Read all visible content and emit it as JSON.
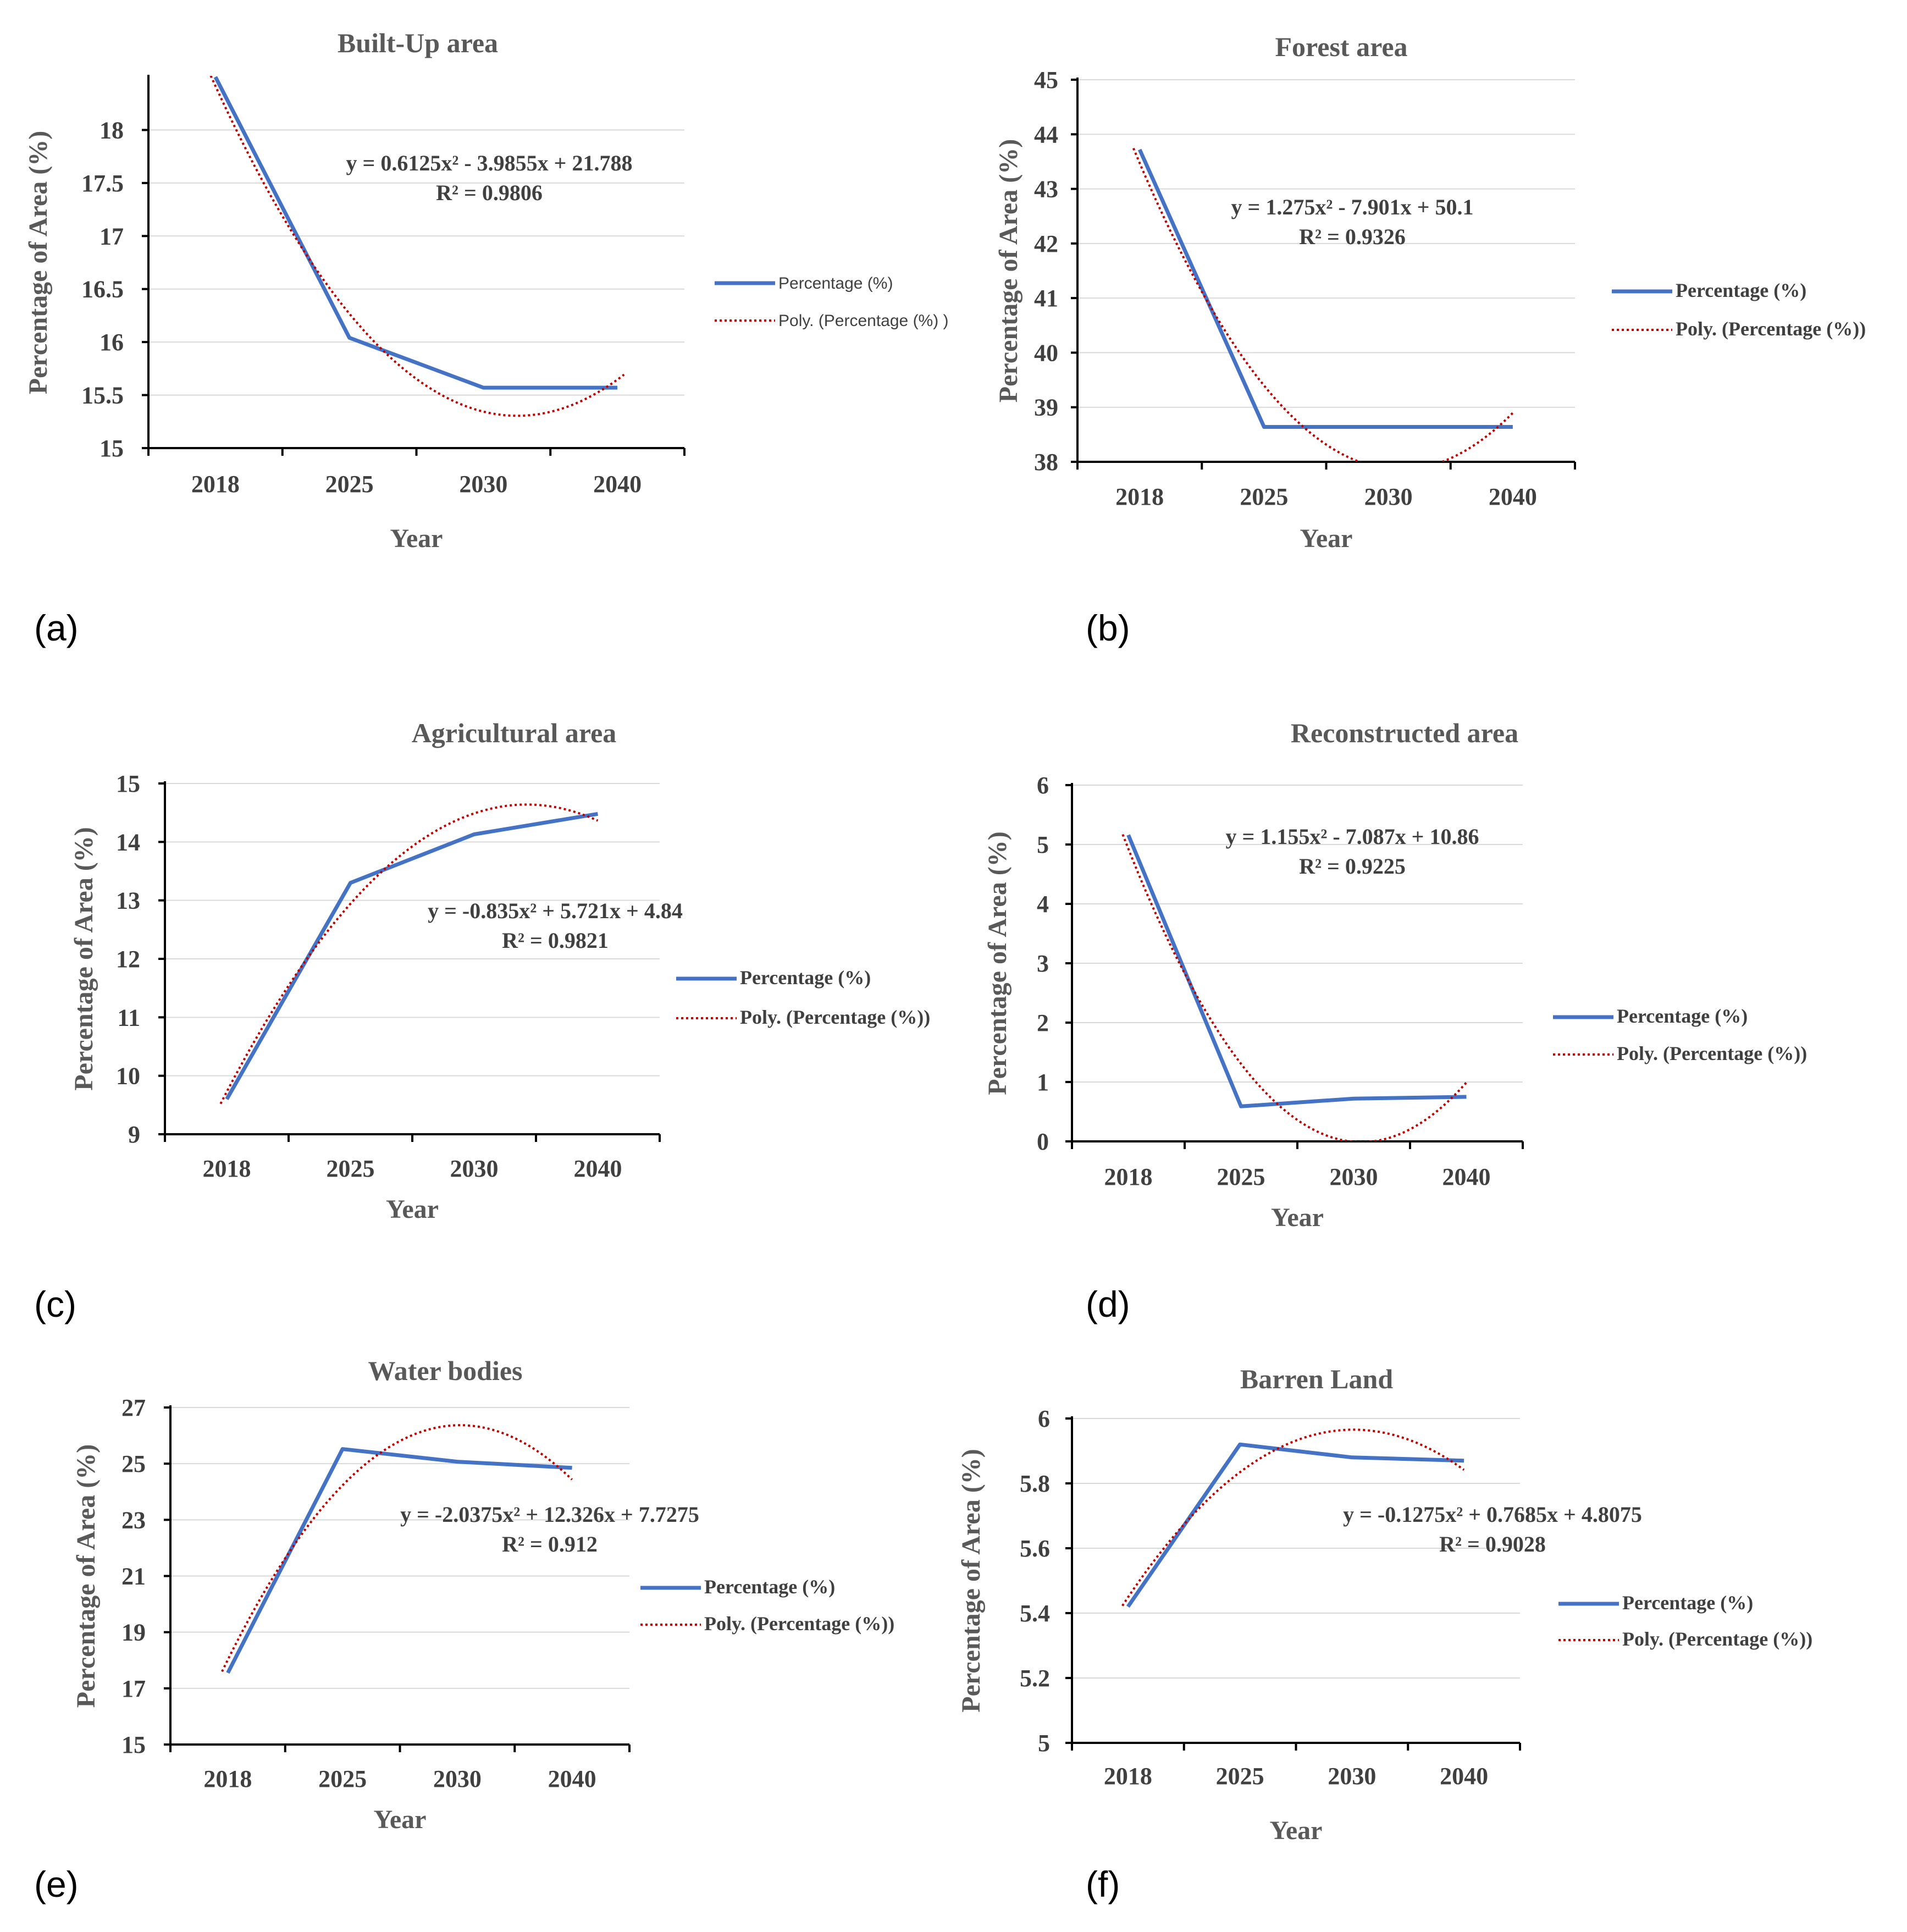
{
  "chart_data": [
    {
      "type": "line",
      "panel_label": "(a)",
      "title": "Built-Up area",
      "xlabel": "Year",
      "ylabel": "Percentage of Area (%)",
      "categories": [
        "2018",
        "2025",
        "2030",
        "2040"
      ],
      "ylim": [
        15,
        18.5
      ],
      "yticks": [
        15,
        15.5,
        16,
        16.5,
        17,
        17.5,
        18
      ],
      "ytick_labels": [
        "15",
        "15.5",
        "16",
        "16.5",
        "17",
        "17.5",
        "18"
      ],
      "series": [
        {
          "name": "Percentage (%)",
          "values": [
            18.5,
            16.04,
            15.57,
            15.57
          ]
        }
      ],
      "trendline": {
        "name": "Poly. (Percentage (%) )",
        "coefficients": [
          0.6125,
          -3.9855,
          21.788
        ],
        "equation": "y = 0.6125x² - 3.9855x + 21.788",
        "r2": "R² = 0.9806"
      },
      "legend": "right"
    },
    {
      "type": "line",
      "panel_label": "(b)",
      "title": "Forest area",
      "xlabel": "Year",
      "ylabel": "Percentage of Area (%)",
      "categories": [
        "2018",
        "2025",
        "2030",
        "2040"
      ],
      "ylim": [
        38,
        45
      ],
      "yticks": [
        38,
        39,
        40,
        41,
        42,
        43,
        44,
        45
      ],
      "ytick_labels": [
        "38",
        "39",
        "40",
        "41",
        "42",
        "43",
        "44",
        "45"
      ],
      "series": [
        {
          "name": "Percentage (%)",
          "values": [
            43.72,
            38.64,
            38.64,
            38.64
          ]
        }
      ],
      "trendline": {
        "name": "Poly. (Percentage (%))",
        "coefficients": [
          1.275,
          -7.901,
          50.1
        ],
        "equation": "y = 1.275x² - 7.901x + 50.1",
        "r2": "R² = 0.9326"
      },
      "legend": "right"
    },
    {
      "type": "line",
      "panel_label": "(c)",
      "title": "Agricultural area",
      "xlabel": "Year",
      "ylabel": "Percentage of Area (%)",
      "categories": [
        "2018",
        "2025",
        "2030",
        "2040"
      ],
      "ylim": [
        9,
        15
      ],
      "yticks": [
        9,
        10,
        11,
        12,
        13,
        14,
        15
      ],
      "ytick_labels": [
        "9",
        "10",
        "11",
        "12",
        "13",
        "14",
        "15"
      ],
      "series": [
        {
          "name": "Percentage (%)",
          "values": [
            9.6,
            13.3,
            14.13,
            14.48
          ]
        }
      ],
      "trendline": {
        "name": "Poly. (Percentage (%))",
        "coefficients": [
          -0.835,
          5.721,
          4.84
        ],
        "equation": "y = -0.835x² + 5.721x + 4.84",
        "r2": "R² = 0.9821"
      },
      "legend": "right"
    },
    {
      "type": "line",
      "panel_label": "(d)",
      "title": "Reconstructed area",
      "xlabel": "Year",
      "ylabel": "Percentage of Area (%)",
      "categories": [
        "2018",
        "2025",
        "2030",
        "2040"
      ],
      "ylim": [
        0,
        6
      ],
      "yticks": [
        0,
        1,
        2,
        3,
        4,
        5,
        6
      ],
      "ytick_labels": [
        "0",
        "1",
        "2",
        "3",
        "4",
        "5",
        "6"
      ],
      "series": [
        {
          "name": "Percentage (%)",
          "values": [
            5.16,
            0.59,
            0.72,
            0.75
          ]
        }
      ],
      "trendline": {
        "name": "Poly. (Percentage (%))",
        "coefficients": [
          1.155,
          -7.087,
          10.86
        ],
        "equation": "y = 1.155x² - 7.087x + 10.86",
        "r2": "R² = 0.9225"
      },
      "legend": "right"
    },
    {
      "type": "line",
      "panel_label": "(e)",
      "title": "Water bodies",
      "xlabel": "Year",
      "ylabel": "Percentage of Area (%)",
      "categories": [
        "2018",
        "2025",
        "2030",
        "2040"
      ],
      "ylim": [
        15,
        27
      ],
      "yticks": [
        15,
        17,
        19,
        21,
        23,
        25,
        27
      ],
      "ytick_labels": [
        "15",
        "17",
        "19",
        "21",
        "23",
        "25",
        "27"
      ],
      "series": [
        {
          "name": "Percentage (%)",
          "values": [
            17.55,
            25.52,
            25.07,
            24.85
          ]
        }
      ],
      "trendline": {
        "name": "Poly. (Percentage (%))",
        "coefficients": [
          -2.0375,
          12.326,
          7.7275
        ],
        "equation": "y = -2.0375x² + 12.326x + 7.7275",
        "r2": "R² = 0.912"
      },
      "legend": "right"
    },
    {
      "type": "line",
      "panel_label": "(f)",
      "title": "Barren Land",
      "xlabel": "Year",
      "ylabel": "Percentage of Area (%)",
      "categories": [
        "2018",
        "2025",
        "2030",
        "2040"
      ],
      "ylim": [
        5,
        6
      ],
      "yticks": [
        5,
        5.2,
        5.4,
        5.6,
        5.8,
        6
      ],
      "ytick_labels": [
        "5",
        "5.2",
        "5.4",
        "5.6",
        "5.8",
        "6"
      ],
      "series": [
        {
          "name": "Percentage (%)",
          "values": [
            5.42,
            5.92,
            5.88,
            5.87
          ]
        }
      ],
      "trendline": {
        "name": "Poly. (Percentage (%))",
        "coefficients": [
          -0.1275,
          0.7685,
          4.8075
        ],
        "equation": "y = -0.1275x² + 0.7685x + 4.8075",
        "r2": "R² = 0.9028"
      },
      "legend": "right"
    }
  ],
  "colors": {
    "series": "#4472c4",
    "trendline": "#c00000",
    "gridline": "#d9d9d9",
    "axis": "#000000"
  }
}
